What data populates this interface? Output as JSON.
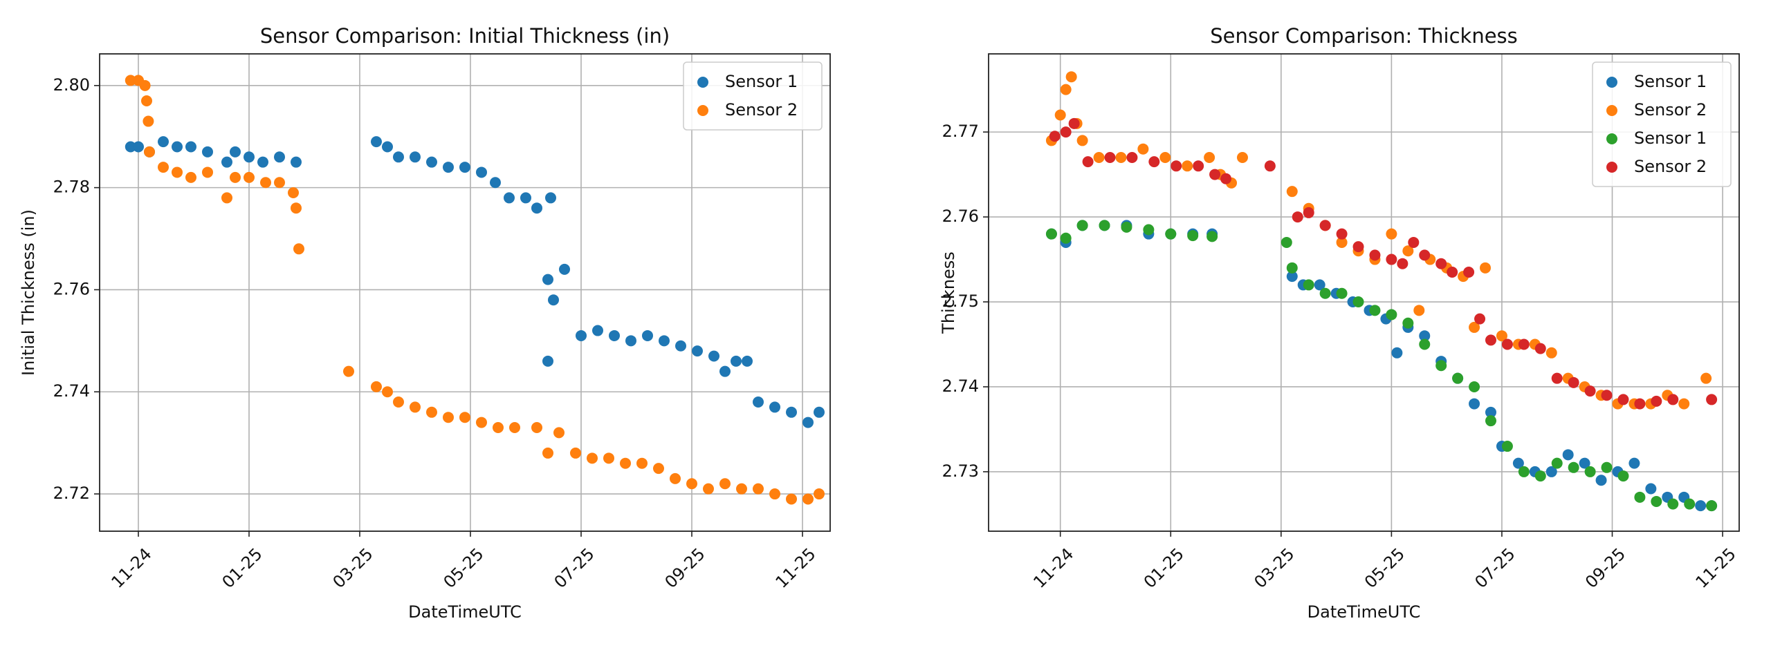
{
  "chart_data": [
    {
      "type": "scatter",
      "title": "Sensor Comparison: Initial Thickness (in)",
      "xlabel": "DateTimeUTC",
      "ylabel": "Initial Thickness (in)",
      "xlim": [
        -0.7,
        12.5
      ],
      "ylim": [
        2.7127,
        2.8062
      ],
      "grid": true,
      "legend": "upper right",
      "xticks": [
        {
          "value": 0,
          "label": "11-24"
        },
        {
          "value": 2,
          "label": "01-25"
        },
        {
          "value": 4,
          "label": "03-25"
        },
        {
          "value": 6,
          "label": "05-25"
        },
        {
          "value": 8,
          "label": "07-25"
        },
        {
          "value": 10,
          "label": "09-25"
        },
        {
          "value": 12,
          "label": "11-25"
        }
      ],
      "yticks": [
        2.72,
        2.74,
        2.76,
        2.78,
        {
          "value": 2.8,
          "label": "2.80"
        }
      ],
      "series": [
        {
          "name": "Sensor 1",
          "color": "#1f77b4",
          "x": [
            -0.14,
            0.0,
            0.2,
            0.45,
            0.7,
            0.95,
            1.25,
            1.6,
            1.75,
            2.0,
            2.25,
            2.55,
            2.85,
            4.3,
            4.5,
            4.7,
            5.0,
            5.3,
            5.6,
            5.9,
            6.2,
            6.45,
            6.7,
            7.0,
            7.2,
            7.45,
            7.4,
            7.5,
            7.4,
            7.7,
            8.0,
            8.3,
            8.6,
            8.9,
            9.2,
            9.5,
            9.8,
            10.1,
            10.4,
            10.6,
            10.8,
            11.0,
            11.2,
            11.5,
            11.8,
            12.1,
            12.3
          ],
          "values": [
            2.788,
            2.788,
            2.787,
            2.789,
            2.788,
            2.788,
            2.787,
            2.785,
            2.787,
            2.786,
            2.785,
            2.786,
            2.785,
            2.789,
            2.788,
            2.786,
            2.786,
            2.785,
            2.784,
            2.784,
            2.783,
            2.781,
            2.778,
            2.778,
            2.776,
            2.778,
            2.762,
            2.758,
            2.746,
            2.764,
            2.751,
            2.752,
            2.751,
            2.75,
            2.751,
            2.75,
            2.749,
            2.748,
            2.747,
            2.744,
            2.746,
            2.746,
            2.738,
            2.737,
            2.736,
            2.734,
            2.736
          ]
        },
        {
          "name": "Sensor 2",
          "color": "#ff7f0e",
          "x": [
            -0.14,
            0.0,
            0.12,
            0.15,
            0.18,
            0.2,
            0.45,
            0.7,
            0.95,
            1.25,
            1.6,
            1.75,
            2.0,
            2.3,
            2.55,
            2.8,
            2.85,
            2.9,
            3.8,
            4.3,
            4.5,
            4.7,
            5.0,
            5.3,
            5.6,
            5.9,
            6.2,
            6.5,
            6.8,
            7.2,
            7.4,
            7.6,
            7.9,
            8.2,
            8.5,
            8.8,
            9.1,
            9.4,
            9.7,
            10.0,
            10.3,
            10.6,
            10.9,
            11.2,
            11.5,
            11.8,
            12.1,
            12.3
          ],
          "values": [
            2.801,
            2.801,
            2.8,
            2.797,
            2.793,
            2.787,
            2.784,
            2.783,
            2.782,
            2.783,
            2.778,
            2.782,
            2.782,
            2.781,
            2.781,
            2.779,
            2.776,
            2.768,
            2.744,
            2.741,
            2.74,
            2.738,
            2.737,
            2.736,
            2.735,
            2.735,
            2.734,
            2.733,
            2.733,
            2.733,
            2.728,
            2.732,
            2.728,
            2.727,
            2.727,
            2.726,
            2.726,
            2.725,
            2.723,
            2.722,
            2.721,
            2.722,
            2.721,
            2.721,
            2.72,
            2.719,
            2.719,
            2.72
          ]
        }
      ]
    },
    {
      "type": "scatter",
      "title": "Sensor Comparison: Thickness",
      "xlabel": "DateTimeUTC",
      "ylabel": "Thickness",
      "xlim": [
        -1.3,
        12.3
      ],
      "ylim": [
        2.723,
        2.7792
      ],
      "grid": true,
      "legend": "upper right",
      "xticks": [
        {
          "value": 0,
          "label": "11-24"
        },
        {
          "value": 2,
          "label": "01-25"
        },
        {
          "value": 4,
          "label": "03-25"
        },
        {
          "value": 6,
          "label": "05-25"
        },
        {
          "value": 8,
          "label": "07-25"
        },
        {
          "value": 10,
          "label": "09-25"
        },
        {
          "value": 12,
          "label": "11-25"
        }
      ],
      "yticks": [
        2.73,
        2.74,
        2.75,
        2.76,
        2.77
      ],
      "series": [
        {
          "name": "Sensor 1",
          "color": "#1f77b4",
          "x": [
            -0.16,
            0.1,
            0.4,
            0.8,
            1.2,
            1.6,
            2.0,
            2.4,
            2.75,
            4.2,
            4.4,
            4.7,
            5.0,
            5.3,
            5.6,
            5.9,
            6.1,
            6.3,
            6.6,
            6.9,
            7.2,
            7.5,
            7.8,
            8.0,
            8.3,
            8.6,
            8.9,
            9.2,
            9.5,
            9.8,
            10.1,
            10.4,
            10.7,
            11.0,
            11.3,
            11.6,
            11.8
          ],
          "values": [
            2.758,
            2.757,
            2.759,
            2.759,
            2.759,
            2.758,
            2.758,
            2.758,
            2.758,
            2.753,
            2.752,
            2.752,
            2.751,
            2.75,
            2.749,
            2.748,
            2.744,
            2.747,
            2.746,
            2.743,
            2.741,
            2.738,
            2.737,
            2.733,
            2.731,
            2.73,
            2.73,
            2.732,
            2.731,
            2.729,
            2.73,
            2.731,
            2.728,
            2.727,
            2.727,
            2.726,
            2.726
          ]
        },
        {
          "name": "Sensor 2",
          "color": "#ff7f0e",
          "x": [
            -0.16,
            0.0,
            0.1,
            0.2,
            0.3,
            0.4,
            0.7,
            1.1,
            1.5,
            1.9,
            2.3,
            2.7,
            2.9,
            3.1,
            3.3,
            4.2,
            4.5,
            4.8,
            5.1,
            5.4,
            5.7,
            6.0,
            6.3,
            6.5,
            6.7,
            7.0,
            7.3,
            7.5,
            7.7,
            8.0,
            8.3,
            8.6,
            8.9,
            9.2,
            9.5,
            9.8,
            10.1,
            10.4,
            10.7,
            11.0,
            11.3,
            11.7
          ],
          "values": [
            2.769,
            2.772,
            2.775,
            2.7765,
            2.771,
            2.769,
            2.767,
            2.767,
            2.768,
            2.767,
            2.766,
            2.767,
            2.765,
            2.764,
            2.767,
            2.763,
            2.761,
            2.759,
            2.757,
            2.756,
            2.755,
            2.758,
            2.756,
            2.749,
            2.755,
            2.754,
            2.753,
            2.747,
            2.754,
            2.746,
            2.745,
            2.745,
            2.744,
            2.741,
            2.74,
            2.739,
            2.738,
            2.738,
            2.738,
            2.739,
            2.738,
            2.741
          ]
        },
        {
          "name": "Sensor 1",
          "color": "#2ca02c",
          "x": [
            -0.16,
            0.1,
            0.4,
            0.8,
            1.2,
            1.6,
            2.0,
            2.4,
            2.75,
            4.1,
            4.2,
            4.5,
            4.8,
            5.1,
            5.4,
            5.7,
            6.0,
            6.3,
            6.6,
            6.9,
            7.2,
            7.5,
            7.8,
            8.1,
            8.4,
            8.7,
            9.0,
            9.3,
            9.6,
            9.9,
            10.2,
            10.5,
            10.8,
            11.1,
            11.4,
            11.8
          ],
          "values": [
            2.758,
            2.7575,
            2.759,
            2.759,
            2.7588,
            2.7585,
            2.758,
            2.7578,
            2.7577,
            2.757,
            2.754,
            2.752,
            2.751,
            2.751,
            2.75,
            2.749,
            2.7485,
            2.7475,
            2.745,
            2.7425,
            2.741,
            2.74,
            2.736,
            2.733,
            2.73,
            2.7295,
            2.731,
            2.7305,
            2.73,
            2.7305,
            2.7295,
            2.727,
            2.7265,
            2.7262,
            2.7262,
            2.726
          ]
        },
        {
          "name": "Sensor 2",
          "color": "#d62728",
          "x": [
            -0.1,
            0.1,
            0.25,
            0.5,
            0.9,
            1.3,
            1.7,
            2.1,
            2.5,
            2.8,
            3.0,
            3.8,
            4.3,
            4.5,
            4.8,
            5.1,
            5.4,
            5.7,
            6.0,
            6.2,
            6.4,
            6.6,
            6.9,
            7.1,
            7.4,
            7.6,
            7.8,
            8.1,
            8.4,
            8.7,
            9.0,
            9.3,
            9.6,
            9.9,
            10.2,
            10.5,
            10.8,
            11.1,
            11.8
          ],
          "values": [
            2.7695,
            2.77,
            2.771,
            2.7665,
            2.767,
            2.767,
            2.7665,
            2.766,
            2.766,
            2.765,
            2.7645,
            2.766,
            2.76,
            2.7605,
            2.759,
            2.758,
            2.7565,
            2.7555,
            2.755,
            2.7545,
            2.757,
            2.7555,
            2.7545,
            2.7535,
            2.7535,
            2.748,
            2.7455,
            2.745,
            2.745,
            2.7445,
            2.741,
            2.7405,
            2.7395,
            2.739,
            2.7385,
            2.738,
            2.7383,
            2.7385,
            2.7385
          ]
        }
      ]
    }
  ]
}
